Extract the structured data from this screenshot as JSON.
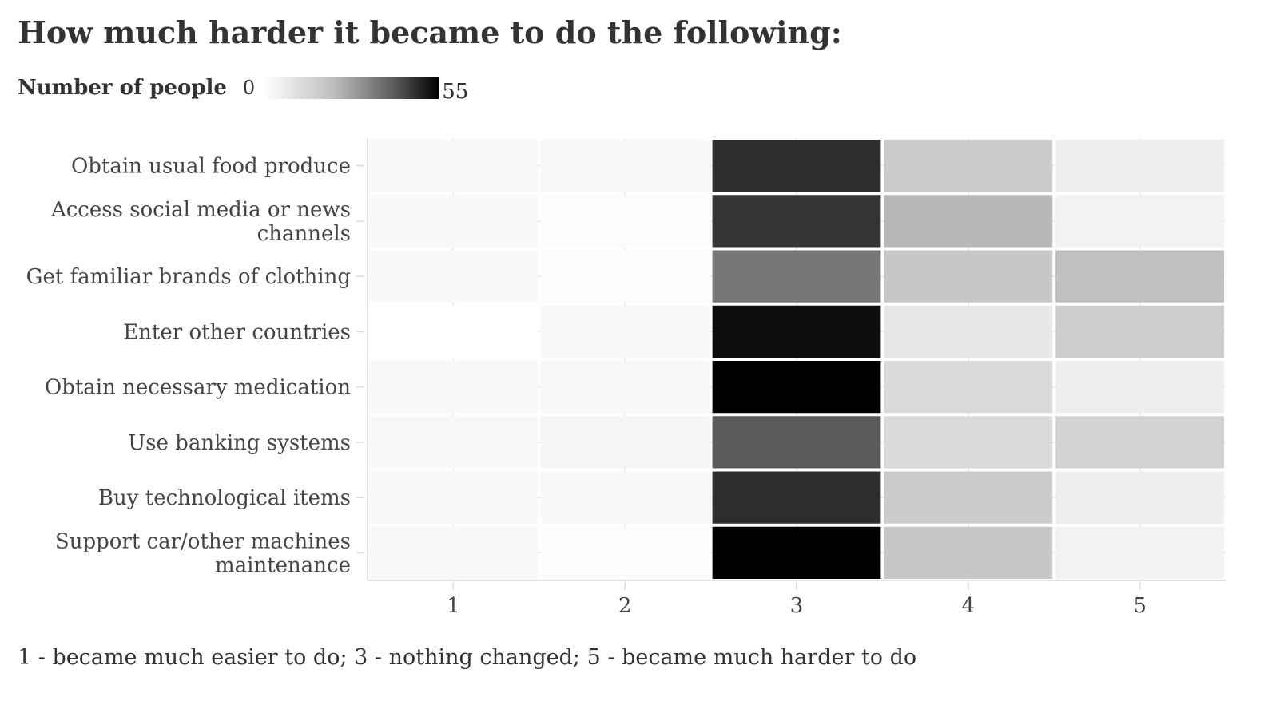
{
  "chart_data": {
    "type": "heatmap",
    "title": "How much harder it became to do the following:",
    "legend": {
      "title": "Number of people",
      "min": "0",
      "max": "55",
      "range": [
        0,
        55
      ],
      "colors": [
        "#ffffff",
        "#000000"
      ],
      "placement": "top-left"
    },
    "x": [
      1,
      2,
      3,
      4,
      5
    ],
    "x_tick_labels": [
      "1",
      "2",
      "3",
      "4",
      "5"
    ],
    "y_categories": [
      [
        "Obtain usual food produce"
      ],
      [
        "Access social media or news",
        "channels"
      ],
      [
        "Get familiar brands of clothing"
      ],
      [
        "Enter other countries"
      ],
      [
        "Obtain necessary medication"
      ],
      [
        "Use banking systems"
      ],
      [
        "Buy technological items"
      ],
      [
        "Support car/other machines",
        "maintenance"
      ]
    ],
    "values": [
      [
        2,
        2,
        50,
        15,
        5
      ],
      [
        2,
        1,
        49,
        20,
        4
      ],
      [
        2,
        1,
        36,
        16,
        18
      ],
      [
        0,
        2,
        54,
        7,
        14
      ],
      [
        2,
        2,
        55,
        11,
        5
      ],
      [
        2,
        3,
        42,
        11,
        13
      ],
      [
        2,
        2,
        50,
        15,
        5
      ],
      [
        2,
        1,
        55,
        16,
        4
      ]
    ],
    "grid": true,
    "caption": "1 - became much easier to do; 3 - nothing changed; 5 - became much harder to do"
  }
}
